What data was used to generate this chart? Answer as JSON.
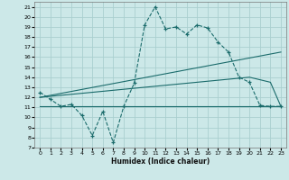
{
  "xlabel": "Humidex (Indice chaleur)",
  "background_color": "#cce8e8",
  "grid_color": "#aacfcf",
  "line_color": "#1a6b6b",
  "ylim": [
    7,
    21.5
  ],
  "xlim": [
    -0.5,
    23.5
  ],
  "yticks": [
    7,
    8,
    9,
    10,
    11,
    12,
    13,
    14,
    15,
    16,
    17,
    18,
    19,
    20,
    21
  ],
  "xticks": [
    0,
    1,
    2,
    3,
    4,
    5,
    6,
    7,
    8,
    9,
    10,
    11,
    12,
    13,
    14,
    15,
    16,
    17,
    18,
    19,
    20,
    21,
    22,
    23
  ],
  "line1_x": [
    0,
    1,
    2,
    3,
    4,
    5,
    6,
    7,
    8,
    9,
    10,
    11,
    12,
    13,
    14,
    15,
    16,
    17,
    18,
    19,
    20,
    21,
    22,
    23
  ],
  "line1_y": [
    12.5,
    11.8,
    11.1,
    11.3,
    10.2,
    8.2,
    10.6,
    7.5,
    11.1,
    13.4,
    19.2,
    21.0,
    18.8,
    19.0,
    18.3,
    19.2,
    18.9,
    17.5,
    16.5,
    14.0,
    13.5,
    11.2,
    11.1,
    11.1
  ],
  "line2_x": [
    0,
    23
  ],
  "line2_y": [
    11.1,
    11.1
  ],
  "line3_x": [
    0,
    23
  ],
  "line3_y": [
    12.0,
    16.5
  ],
  "line4_x": [
    0,
    20,
    22,
    23
  ],
  "line4_y": [
    12.0,
    14.0,
    13.5,
    11.1
  ]
}
